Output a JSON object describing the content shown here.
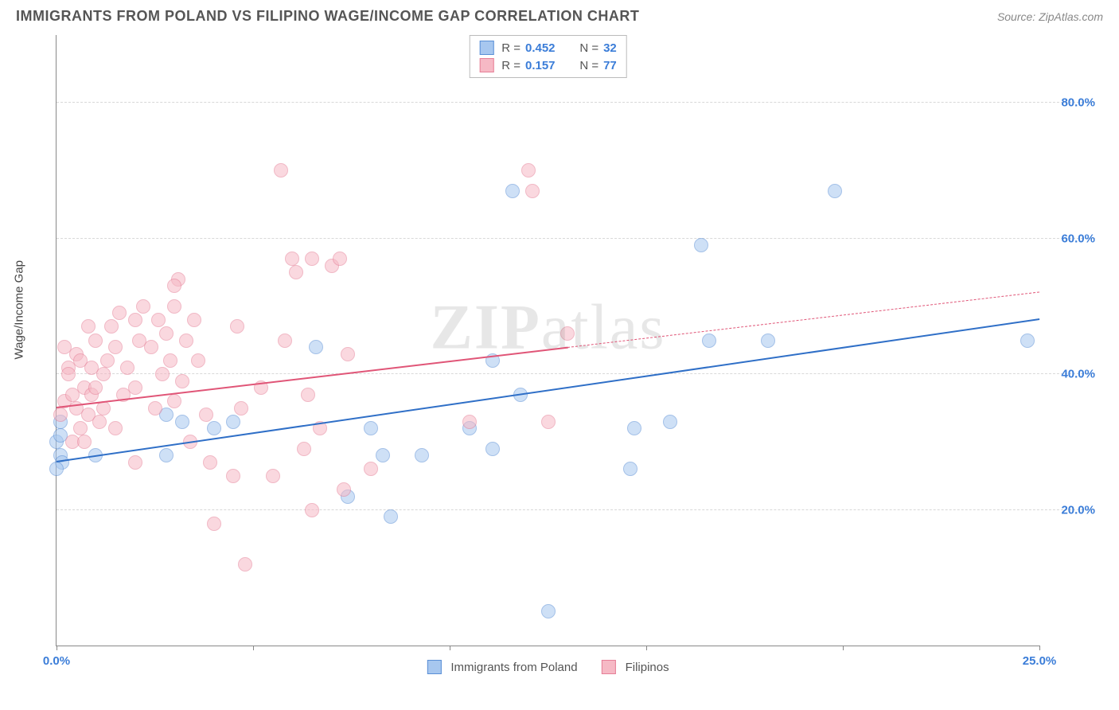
{
  "title": "IMMIGRANTS FROM POLAND VS FILIPINO WAGE/INCOME GAP CORRELATION CHART",
  "source": "Source: ZipAtlas.com",
  "watermark_bold": "ZIP",
  "watermark_rest": "atlas",
  "chart": {
    "type": "scatter",
    "background_color": "#ffffff",
    "grid_color": "#d8d8d8",
    "axis_color": "#888888",
    "tick_label_color": "#3b7dd8",
    "tick_fontsize": 15,
    "ylabel": "Wage/Income Gap",
    "ylabel_fontsize": 15,
    "ylabel_color": "#444444",
    "xlim": [
      0,
      25
    ],
    "ylim": [
      0,
      90
    ],
    "x_ticks": [
      0,
      5,
      10,
      15,
      20,
      25
    ],
    "x_tick_labels": {
      "0": "0.0%",
      "25": "25.0%"
    },
    "y_ticks": [
      20,
      40,
      60,
      80
    ],
    "y_tick_labels": {
      "20": "20.0%",
      "40": "40.0%",
      "60": "60.0%",
      "80": "80.0%"
    },
    "marker_radius": 9,
    "marker_border_width": 1.5,
    "marker_opacity": 0.55,
    "series": [
      {
        "key": "poland",
        "label": "Immigrants from Poland",
        "fill": "#a7c7ef",
        "stroke": "#5a8fd6",
        "R": "0.452",
        "N": "32",
        "trend": {
          "x1": 0,
          "y1": 27,
          "x2": 25,
          "y2": 48,
          "solid_until_x": 25,
          "color": "#2f6fc7",
          "width": 2.5
        },
        "points": [
          [
            0.0,
            30
          ],
          [
            0.1,
            31
          ],
          [
            0.1,
            28
          ],
          [
            0.1,
            33
          ],
          [
            0.15,
            27
          ],
          [
            1.0,
            28
          ],
          [
            2.8,
            28
          ],
          [
            2.8,
            34
          ],
          [
            3.2,
            33
          ],
          [
            4.0,
            32
          ],
          [
            4.5,
            33
          ],
          [
            6.6,
            44
          ],
          [
            7.4,
            22
          ],
          [
            8.0,
            32
          ],
          [
            8.3,
            28
          ],
          [
            8.5,
            19
          ],
          [
            9.3,
            28
          ],
          [
            10.5,
            32
          ],
          [
            11.1,
            42
          ],
          [
            11.1,
            29
          ],
          [
            11.6,
            67
          ],
          [
            11.8,
            37
          ],
          [
            12.5,
            5
          ],
          [
            14.6,
            26
          ],
          [
            14.7,
            32
          ],
          [
            15.6,
            33
          ],
          [
            16.4,
            59
          ],
          [
            16.6,
            45
          ],
          [
            18.1,
            45
          ],
          [
            19.8,
            67
          ],
          [
            24.7,
            45
          ],
          [
            0.0,
            26
          ]
        ]
      },
      {
        "key": "filipino",
        "label": "Filipinos",
        "fill": "#f6b9c5",
        "stroke": "#e67f97",
        "R": "0.157",
        "N": "77",
        "trend": {
          "x1": 0,
          "y1": 35,
          "x2": 25,
          "y2": 52,
          "solid_until_x": 13,
          "color": "#e05577",
          "width": 2.5
        },
        "points": [
          [
            0.1,
            34
          ],
          [
            0.2,
            36
          ],
          [
            0.2,
            44
          ],
          [
            0.3,
            41
          ],
          [
            0.3,
            40
          ],
          [
            0.4,
            37
          ],
          [
            0.4,
            30
          ],
          [
            0.5,
            43
          ],
          [
            0.5,
            35
          ],
          [
            0.6,
            32
          ],
          [
            0.6,
            42
          ],
          [
            0.7,
            38
          ],
          [
            0.7,
            30
          ],
          [
            0.8,
            47
          ],
          [
            0.8,
            34
          ],
          [
            0.9,
            41
          ],
          [
            0.9,
            37
          ],
          [
            1.0,
            45
          ],
          [
            1.0,
            38
          ],
          [
            1.1,
            33
          ],
          [
            1.2,
            40
          ],
          [
            1.2,
            35
          ],
          [
            1.3,
            42
          ],
          [
            1.4,
            47
          ],
          [
            1.5,
            32
          ],
          [
            1.5,
            44
          ],
          [
            1.6,
            49
          ],
          [
            1.7,
            37
          ],
          [
            1.8,
            41
          ],
          [
            2.0,
            48
          ],
          [
            2.0,
            38
          ],
          [
            2.0,
            27
          ],
          [
            2.1,
            45
          ],
          [
            2.2,
            50
          ],
          [
            2.4,
            44
          ],
          [
            2.5,
            35
          ],
          [
            2.6,
            48
          ],
          [
            2.7,
            40
          ],
          [
            2.8,
            46
          ],
          [
            2.9,
            42
          ],
          [
            3.0,
            50
          ],
          [
            3.0,
            36
          ],
          [
            3.1,
            54
          ],
          [
            3.2,
            39
          ],
          [
            3.3,
            45
          ],
          [
            3.4,
            30
          ],
          [
            3.5,
            48
          ],
          [
            3.6,
            42
          ],
          [
            3.8,
            34
          ],
          [
            3.9,
            27
          ],
          [
            4.0,
            18
          ],
          [
            4.5,
            25
          ],
          [
            4.6,
            47
          ],
          [
            4.7,
            35
          ],
          [
            4.8,
            12
          ],
          [
            5.2,
            38
          ],
          [
            5.5,
            25
          ],
          [
            5.7,
            70
          ],
          [
            5.8,
            45
          ],
          [
            6.0,
            57
          ],
          [
            6.1,
            55
          ],
          [
            6.3,
            29
          ],
          [
            6.4,
            37
          ],
          [
            6.5,
            57
          ],
          [
            6.5,
            20
          ],
          [
            6.7,
            32
          ],
          [
            7.0,
            56
          ],
          [
            7.2,
            57
          ],
          [
            7.3,
            23
          ],
          [
            7.4,
            43
          ],
          [
            8.0,
            26
          ],
          [
            10.5,
            33
          ],
          [
            12.0,
            70
          ],
          [
            12.1,
            67
          ],
          [
            12.5,
            33
          ],
          [
            13.0,
            46
          ],
          [
            3.0,
            53
          ]
        ]
      }
    ],
    "legend_top": {
      "R_label": "R =",
      "N_label": "N ="
    }
  }
}
